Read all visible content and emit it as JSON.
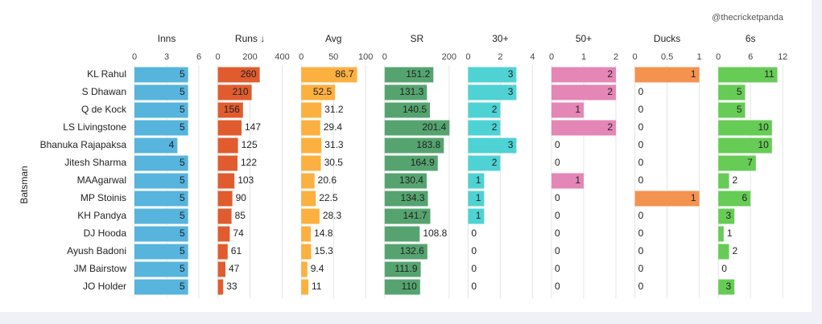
{
  "chart_data": {
    "type": "bar",
    "source": "@thecricketpanda",
    "y_label": "Batsman",
    "categories": [
      "KL Rahul",
      "S Dhawan",
      "Q de Kock",
      "LS Livingstone",
      "Bhanuka Rajapaksa",
      "Jitesh Sharma",
      "MAAgarwal",
      "MP Stoinis",
      "KH Pandya",
      "DJ Hooda",
      "Ayush Badoni",
      "JM Bairstow",
      "JO Holder"
    ],
    "series": [
      {
        "name": "Inns",
        "color": "#56b4dd",
        "xlim": [
          0,
          6
        ],
        "xticks": [
          0,
          3,
          6
        ],
        "values": [
          5,
          5,
          5,
          5,
          4,
          5,
          5,
          5,
          5,
          5,
          5,
          5,
          5
        ]
      },
      {
        "name": "Runs ↓",
        "color": "#e05c2f",
        "xlim": [
          0,
          400
        ],
        "xticks": [
          0,
          200,
          400
        ],
        "values": [
          260,
          210,
          156,
          147,
          125,
          122,
          103,
          90,
          85,
          74,
          61,
          47,
          33
        ]
      },
      {
        "name": "Avg",
        "color": "#fbb040",
        "xlim": [
          0,
          100
        ],
        "xticks": [
          0,
          50,
          100
        ],
        "values": [
          86.7,
          52.5,
          31.2,
          29.4,
          31.3,
          30.5,
          20.6,
          22.5,
          28.3,
          14.8,
          15.3,
          9.4,
          11
        ]
      },
      {
        "name": "SR",
        "color": "#55a46f",
        "xlim": [
          0,
          200
        ],
        "xticks": [
          0,
          200
        ],
        "values": [
          151.2,
          131.3,
          140.5,
          201.4,
          183.8,
          164.9,
          130.4,
          134.3,
          141.7,
          108.8,
          132.6,
          111.9,
          110
        ]
      },
      {
        "name": "30+",
        "color": "#4fd2d4",
        "xlim": [
          0,
          4
        ],
        "xticks": [
          0,
          2,
          4
        ],
        "values": [
          3,
          3,
          2,
          2,
          3,
          2,
          1,
          1,
          1,
          0,
          0,
          0,
          0
        ]
      },
      {
        "name": "50+",
        "color": "#e486b6",
        "xlim": [
          0,
          2
        ],
        "xticks": [
          0,
          1,
          2
        ],
        "values": [
          2,
          2,
          1,
          2,
          0,
          0,
          1,
          0,
          0,
          0,
          0,
          0,
          0
        ]
      },
      {
        "name": "Ducks",
        "color": "#f4924f",
        "xlim": [
          0,
          1
        ],
        "xticks": [
          0,
          0.5,
          1
        ],
        "values": [
          1,
          0,
          0,
          0,
          0,
          0,
          0,
          1,
          0,
          0,
          0,
          0,
          0
        ]
      },
      {
        "name": "6s",
        "color": "#66cc55",
        "xlim": [
          0,
          12
        ],
        "xticks": [
          0,
          6,
          12
        ],
        "values": [
          11,
          5,
          5,
          10,
          10,
          7,
          2,
          6,
          3,
          1,
          2,
          0,
          3
        ]
      }
    ]
  }
}
